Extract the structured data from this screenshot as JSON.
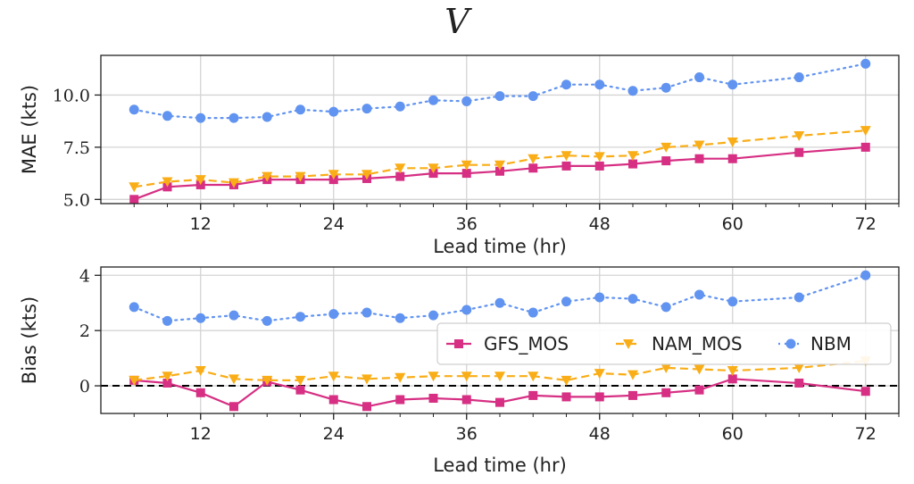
{
  "title": "V",
  "legend": [
    "GFS_MOS",
    "NAM_MOS",
    "NBM"
  ],
  "colors": {
    "GFS_MOS": "#d62f83",
    "NAM_MOS": "#f9ad17",
    "NBM": "#6193f0"
  },
  "chart_data": [
    {
      "type": "line",
      "title": "V",
      "xlabel": "Lead time (hr)",
      "ylabel": "MAE (kts)",
      "xlim": [
        3,
        75
      ],
      "ylim": [
        4.8,
        11.9
      ],
      "xticks": [
        12,
        24,
        36,
        48,
        60,
        72
      ],
      "yticks": [
        5.0,
        7.5,
        10.0
      ],
      "ytick_labels": [
        "5.0",
        "7.5",
        "10.0"
      ],
      "grid": true,
      "series": [
        {
          "name": "GFS_MOS",
          "marker": "square",
          "linestyle": "solid",
          "x": [
            6,
            9,
            12,
            15,
            18,
            21,
            24,
            27,
            30,
            33,
            36,
            39,
            42,
            45,
            48,
            51,
            54,
            57,
            60,
            66,
            72
          ],
          "y": [
            5.0,
            5.6,
            5.7,
            5.7,
            5.95,
            5.95,
            5.95,
            6.0,
            6.1,
            6.25,
            6.25,
            6.35,
            6.5,
            6.6,
            6.6,
            6.7,
            6.85,
            6.95,
            6.95,
            7.25,
            7.5
          ]
        },
        {
          "name": "NAM_MOS",
          "marker": "triangle-down",
          "linestyle": "dashed",
          "x": [
            6,
            9,
            12,
            15,
            18,
            21,
            24,
            27,
            30,
            33,
            36,
            39,
            42,
            45,
            48,
            51,
            54,
            57,
            60,
            66,
            72
          ],
          "y": [
            5.6,
            5.85,
            5.95,
            5.8,
            6.1,
            6.1,
            6.2,
            6.2,
            6.5,
            6.5,
            6.65,
            6.65,
            6.95,
            7.1,
            7.05,
            7.1,
            7.5,
            7.6,
            7.75,
            8.05,
            8.3
          ]
        },
        {
          "name": "NBM",
          "marker": "circle",
          "linestyle": "dotted",
          "x": [
            6,
            9,
            12,
            15,
            18,
            21,
            24,
            27,
            30,
            33,
            36,
            39,
            42,
            45,
            48,
            51,
            54,
            57,
            60,
            66,
            72
          ],
          "y": [
            9.3,
            9.0,
            8.9,
            8.9,
            8.95,
            9.3,
            9.2,
            9.35,
            9.45,
            9.75,
            9.7,
            9.95,
            9.95,
            10.5,
            10.5,
            10.2,
            10.35,
            10.85,
            10.5,
            10.85,
            11.5
          ]
        }
      ]
    },
    {
      "type": "line",
      "xlabel": "Lead time (hr)",
      "ylabel": "Bias (kts)",
      "xlim": [
        3,
        75
      ],
      "ylim": [
        -1.0,
        4.3
      ],
      "xticks": [
        12,
        24,
        36,
        48,
        60,
        72
      ],
      "yticks": [
        0,
        2,
        4
      ],
      "ytick_labels": [
        "0",
        "2",
        "4"
      ],
      "grid": true,
      "zero_line": true,
      "legend_position": "center-right",
      "series": [
        {
          "name": "GFS_MOS",
          "marker": "square",
          "linestyle": "solid",
          "x": [
            6,
            9,
            12,
            15,
            18,
            21,
            24,
            27,
            30,
            33,
            36,
            39,
            42,
            45,
            48,
            51,
            54,
            57,
            60,
            66,
            72
          ],
          "y": [
            0.2,
            0.1,
            -0.25,
            -0.75,
            0.15,
            -0.15,
            -0.5,
            -0.75,
            -0.5,
            -0.45,
            -0.5,
            -0.6,
            -0.35,
            -0.4,
            -0.4,
            -0.35,
            -0.25,
            -0.15,
            0.25,
            0.1,
            -0.2
          ]
        },
        {
          "name": "NAM_MOS",
          "marker": "triangle-down",
          "linestyle": "dashed",
          "x": [
            6,
            9,
            12,
            15,
            18,
            21,
            24,
            27,
            30,
            33,
            36,
            39,
            42,
            45,
            48,
            51,
            54,
            57,
            60,
            66,
            72
          ],
          "y": [
            0.2,
            0.35,
            0.55,
            0.25,
            0.2,
            0.2,
            0.35,
            0.25,
            0.3,
            0.35,
            0.35,
            0.35,
            0.35,
            0.2,
            0.45,
            0.4,
            0.65,
            0.6,
            0.55,
            0.65,
            0.9
          ]
        },
        {
          "name": "NBM",
          "marker": "circle",
          "linestyle": "dotted",
          "x": [
            6,
            9,
            12,
            15,
            18,
            21,
            24,
            27,
            30,
            33,
            36,
            39,
            42,
            45,
            48,
            51,
            54,
            57,
            60,
            66,
            72
          ],
          "y": [
            2.85,
            2.35,
            2.45,
            2.55,
            2.35,
            2.5,
            2.6,
            2.65,
            2.45,
            2.55,
            2.75,
            3.0,
            2.65,
            3.05,
            3.2,
            3.15,
            2.85,
            3.3,
            3.05,
            3.2,
            4.0
          ]
        }
      ]
    }
  ]
}
